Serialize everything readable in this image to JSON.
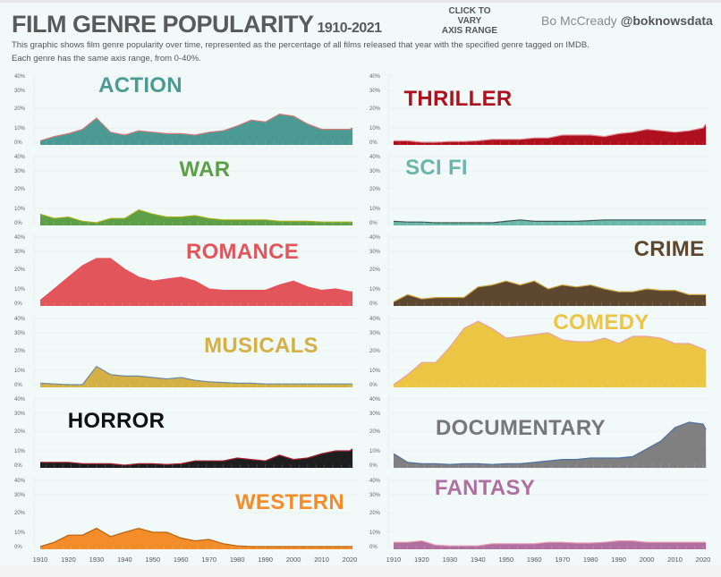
{
  "header": {
    "title": "FILM GENRE POPULARITY",
    "years": "1910-2021",
    "click_lines": [
      "CLICK TO",
      "VARY",
      "AXIS RANGE"
    ],
    "author": "Bo McCready",
    "handle": "@boknowsdata",
    "description_1": "This graphic shows film genre popularity over time, represented as the percentage of all films released that year with the specified genre tagged on IMDB.",
    "description_2": "Each genre has the same axis range, from 0-40%."
  },
  "chart_data": {
    "type": "area",
    "x_years": [
      1910,
      1915,
      1920,
      1925,
      1930,
      1935,
      1940,
      1945,
      1950,
      1955,
      1960,
      1965,
      1970,
      1975,
      1980,
      1985,
      1990,
      1995,
      2000,
      2005,
      2010,
      2015,
      2020,
      2021
    ],
    "xlim": [
      1910,
      2021
    ],
    "x_ticks": [
      "1910",
      "1920",
      "1930",
      "1940",
      "1950",
      "1960",
      "1970",
      "1980",
      "1990",
      "2000",
      "2010",
      "2020"
    ],
    "ylim": [
      0,
      40
    ],
    "y_ticks": [
      "0%",
      "10%",
      "20%",
      "30%",
      "40%"
    ],
    "grid": true,
    "panels": [
      {
        "name": "ACTION",
        "column": "left",
        "fill": "#4b9a93",
        "stroke": "#d27a7a",
        "label_color": "#4b9a93",
        "values": [
          1,
          4,
          6,
          9,
          15,
          7,
          5,
          8,
          7,
          6,
          6,
          5,
          7,
          8,
          11,
          14,
          13,
          17,
          16,
          12,
          9,
          9,
          9,
          10
        ]
      },
      {
        "name": "WAR",
        "column": "left",
        "fill": "#5c9f46",
        "stroke": "#a2ae1c",
        "label_color": "#5c9f46",
        "values": [
          6,
          3,
          4,
          1,
          0,
          3,
          3,
          9,
          6,
          4,
          4,
          5,
          3,
          2,
          2,
          2,
          2,
          1,
          1,
          1,
          0.5,
          0.5,
          0.5,
          0.5
        ]
      },
      {
        "name": "ROMANCE",
        "column": "left",
        "fill": "#e2555a",
        "stroke": "#e2555a",
        "label_color": "#e2555a",
        "values": [
          2,
          10,
          16,
          22,
          26,
          26,
          20,
          16,
          14,
          15,
          16,
          14,
          10,
          9,
          9,
          9,
          9,
          12,
          14,
          11,
          9,
          10,
          8,
          8
        ]
      },
      {
        "name": "MUSICALS",
        "column": "left",
        "fill": "#d5b045",
        "stroke": "#6a8aa0",
        "label_color": "#d5b045",
        "values": [
          1,
          0.5,
          0,
          0,
          12,
          7,
          6,
          6,
          5,
          4,
          5,
          3,
          2,
          1.5,
          1,
          1,
          0.5,
          0.5,
          0.5,
          0.5,
          0.5,
          0.5,
          0.5,
          0.5
        ]
      },
      {
        "name": "HORROR",
        "column": "left",
        "fill": "#1e1e1e",
        "stroke": "#a3202e",
        "label_color": "#111111",
        "values": [
          2,
          2,
          2,
          1,
          1,
          1,
          0,
          1,
          1,
          0.5,
          1,
          3,
          3,
          3,
          5,
          4,
          3,
          7,
          4,
          5,
          8,
          10,
          10,
          11
        ]
      },
      {
        "name": "WESTERN",
        "column": "left",
        "fill": "#f38d2a",
        "stroke": "#b8620f",
        "label_color": "#f38d2a",
        "values": [
          0,
          3,
          8,
          8,
          12,
          7,
          10,
          12,
          10,
          10,
          6,
          4,
          5,
          2,
          0.5,
          0,
          0,
          0,
          0,
          0,
          0,
          0,
          0,
          0
        ]
      },
      {
        "name": "THRILLER",
        "column": "right",
        "fill": "#ae101e",
        "stroke": "#e08a95",
        "label_color": "#ae101e",
        "values": [
          1,
          1,
          0,
          0,
          0.5,
          0.5,
          1,
          2,
          2,
          2,
          3,
          3,
          5,
          5,
          5,
          4,
          6,
          7,
          9,
          8,
          7,
          8,
          10,
          12
        ]
      },
      {
        "name": "SCI FI",
        "column": "right",
        "fill": "#6bb6ab",
        "stroke": "#3d5a52",
        "label_color": "#6bb6ab",
        "values": [
          1,
          0.5,
          0.5,
          0,
          0,
          0,
          0,
          0,
          1,
          2,
          1,
          1,
          1,
          1,
          1.5,
          2,
          2,
          2,
          2,
          2,
          2,
          2,
          2,
          2
        ]
      },
      {
        "name": "CRIME",
        "column": "right",
        "fill": "#5e472f",
        "stroke": "#c9a23f",
        "label_color": "#5e472f",
        "values": [
          1,
          6,
          3,
          4,
          4,
          4,
          11,
          12,
          14,
          12,
          14,
          10,
          12,
          11,
          12,
          10,
          8,
          8,
          10,
          9,
          9,
          6,
          6,
          6
        ]
      },
      {
        "name": "COMEDY",
        "column": "right",
        "fill": "#ecc545",
        "stroke": "#e7a3a3",
        "label_color": "#ecc545",
        "values": [
          0,
          7,
          14,
          14,
          22,
          33,
          38,
          33,
          27,
          28,
          29,
          30,
          26,
          25,
          25,
          27,
          24,
          28,
          28,
          27,
          24,
          24,
          21,
          20
        ]
      },
      {
        "name": "DOCUMENTARY",
        "column": "right",
        "fill": "#808080",
        "stroke": "#4b72a2",
        "label_color": "#777777",
        "values": [
          8,
          2,
          1,
          1,
          0.5,
          1,
          1,
          0.5,
          1,
          1,
          2,
          3,
          4,
          4,
          5,
          5,
          5,
          6,
          11,
          15,
          22,
          25,
          24,
          21
        ]
      },
      {
        "name": "FANTASY",
        "column": "right",
        "fill": "#b06fa1",
        "stroke": "#e99aae",
        "label_color": "#b06fa1",
        "values": [
          3,
          3,
          4,
          1,
          0.5,
          0.5,
          0.5,
          2,
          2,
          2,
          2,
          3,
          3,
          2.5,
          2.5,
          3,
          4,
          4,
          3,
          3,
          3,
          3,
          3,
          3
        ]
      }
    ]
  }
}
